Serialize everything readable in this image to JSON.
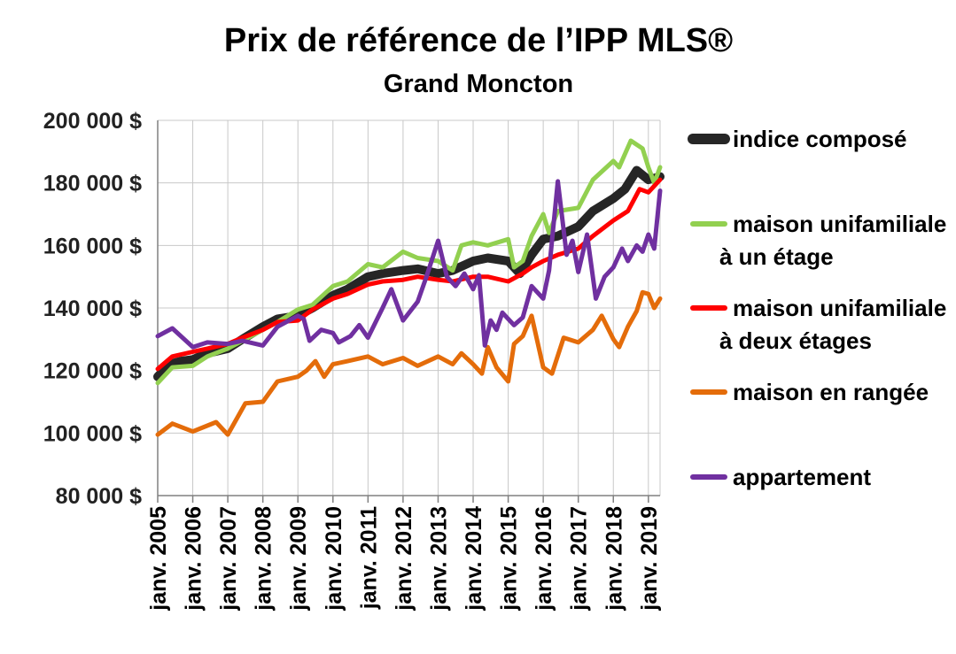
{
  "chart_data": {
    "type": "line",
    "title": "Prix de référence de l’IPP MLS®",
    "subtitle": "Grand Moncton",
    "ylim": [
      80000,
      200000
    ],
    "yticks": [
      80000,
      100000,
      120000,
      140000,
      160000,
      180000,
      200000
    ],
    "ytick_labels": [
      "80 000 $",
      "100 000 $",
      "120 000 $",
      "140 000 $",
      "160 000 $",
      "180 000 $",
      "200 000 $"
    ],
    "xlim": [
      "2005-01",
      "2019-05"
    ],
    "xticks": [
      "2005-01",
      "2006-01",
      "2007-01",
      "2008-01",
      "2009-01",
      "2010-01",
      "2011-01",
      "2012-01",
      "2013-01",
      "2014-01",
      "2015-01",
      "2016-01",
      "2017-01",
      "2018-01",
      "2019-01"
    ],
    "xtick_labels": [
      "janv. 2005",
      "janv. 2006",
      "janv. 2007",
      "janv. 2008",
      "janv. 2009",
      "janv. 2010",
      "janv. 2011",
      "janv. 2012",
      "janv. 2013",
      "janv. 2014",
      "janv. 2015",
      "janv. 2016",
      "janv. 2017",
      "janv. 2018",
      "janv. 2019"
    ],
    "grid": true,
    "legend_position": "right",
    "series": [
      {
        "name": "indice composé",
        "color": "#262626",
        "width": 10,
        "points": [
          [
            "2005-01",
            118000
          ],
          [
            "2005-05",
            122000
          ],
          [
            "2005-09",
            123000
          ],
          [
            "2006-01",
            123500
          ],
          [
            "2006-06",
            125500
          ],
          [
            "2007-01",
            127000
          ],
          [
            "2007-06",
            130000
          ],
          [
            "2008-01",
            134000
          ],
          [
            "2008-06",
            136500
          ],
          [
            "2009-01",
            137500
          ],
          [
            "2009-06",
            140000
          ],
          [
            "2010-01",
            144000
          ],
          [
            "2010-06",
            146000
          ],
          [
            "2011-01",
            150000
          ],
          [
            "2011-06",
            151000
          ],
          [
            "2012-01",
            152000
          ],
          [
            "2012-06",
            152500
          ],
          [
            "2013-01",
            151000
          ],
          [
            "2013-06",
            152000
          ],
          [
            "2014-01",
            155000
          ],
          [
            "2014-06",
            156000
          ],
          [
            "2015-01",
            155000
          ],
          [
            "2015-05",
            151000
          ],
          [
            "2015-09",
            157000
          ],
          [
            "2016-01",
            162000
          ],
          [
            "2016-06",
            163000
          ],
          [
            "2017-01",
            166000
          ],
          [
            "2017-06",
            171000
          ],
          [
            "2018-01",
            175000
          ],
          [
            "2018-05",
            178000
          ],
          [
            "2018-09",
            184000
          ],
          [
            "2019-01",
            181000
          ],
          [
            "2019-05",
            182000
          ]
        ]
      },
      {
        "name": "maison unifamiliale à un étage",
        "color": "#92d050",
        "width": 5,
        "points": [
          [
            "2005-01",
            116000
          ],
          [
            "2005-03",
            118000
          ],
          [
            "2005-06",
            121000
          ],
          [
            "2006-01",
            121500
          ],
          [
            "2006-06",
            124500
          ],
          [
            "2007-01",
            127000
          ],
          [
            "2007-06",
            129500
          ],
          [
            "2008-01",
            133000
          ],
          [
            "2008-06",
            135500
          ],
          [
            "2009-01",
            139500
          ],
          [
            "2009-06",
            141000
          ],
          [
            "2010-01",
            147000
          ],
          [
            "2010-06",
            148500
          ],
          [
            "2011-01",
            154000
          ],
          [
            "2011-06",
            153000
          ],
          [
            "2012-01",
            158000
          ],
          [
            "2012-06",
            156000
          ],
          [
            "2013-01",
            155000
          ],
          [
            "2013-06",
            152000
          ],
          [
            "2013-09",
            160000
          ],
          [
            "2014-01",
            161000
          ],
          [
            "2014-06",
            160000
          ],
          [
            "2015-01",
            162000
          ],
          [
            "2015-03",
            153000
          ],
          [
            "2015-06",
            155000
          ],
          [
            "2015-09",
            163000
          ],
          [
            "2016-01",
            170000
          ],
          [
            "2016-03",
            164000
          ],
          [
            "2016-06",
            171000
          ],
          [
            "2017-01",
            172000
          ],
          [
            "2017-06",
            181000
          ],
          [
            "2018-01",
            187000
          ],
          [
            "2018-03",
            185000
          ],
          [
            "2018-07",
            193500
          ],
          [
            "2018-11",
            191000
          ],
          [
            "2019-01",
            185000
          ],
          [
            "2019-03",
            180000
          ],
          [
            "2019-05",
            185000
          ]
        ]
      },
      {
        "name": "maison unifamiliale à deux étages",
        "color": "#ff0000",
        "width": 5,
        "points": [
          [
            "2005-01",
            120500
          ],
          [
            "2005-06",
            124500
          ],
          [
            "2006-01",
            126000
          ],
          [
            "2006-06",
            127000
          ],
          [
            "2007-01",
            128500
          ],
          [
            "2007-06",
            130500
          ],
          [
            "2008-01",
            133000
          ],
          [
            "2008-06",
            135500
          ],
          [
            "2009-01",
            136000
          ],
          [
            "2009-06",
            139500
          ],
          [
            "2010-01",
            143000
          ],
          [
            "2010-06",
            144500
          ],
          [
            "2011-01",
            147500
          ],
          [
            "2011-06",
            148500
          ],
          [
            "2012-01",
            149000
          ],
          [
            "2012-06",
            150000
          ],
          [
            "2013-01",
            149000
          ],
          [
            "2013-06",
            148500
          ],
          [
            "2014-01",
            150000
          ],
          [
            "2014-06",
            150000
          ],
          [
            "2015-01",
            148500
          ],
          [
            "2015-06",
            151000
          ],
          [
            "2015-09",
            153000
          ],
          [
            "2016-01",
            155000
          ],
          [
            "2016-06",
            157000
          ],
          [
            "2017-01",
            159000
          ],
          [
            "2017-06",
            163000
          ],
          [
            "2018-01",
            168000
          ],
          [
            "2018-06",
            171000
          ],
          [
            "2018-10",
            178000
          ],
          [
            "2019-01",
            177000
          ],
          [
            "2019-05",
            181000
          ]
        ]
      },
      {
        "name": "maison en rangée",
        "color": "#e46c0a",
        "width": 5,
        "points": [
          [
            "2005-01",
            99500
          ],
          [
            "2005-06",
            103000
          ],
          [
            "2006-01",
            100500
          ],
          [
            "2006-09",
            103500
          ],
          [
            "2007-01",
            99500
          ],
          [
            "2007-07",
            109500
          ],
          [
            "2008-01",
            110000
          ],
          [
            "2008-06",
            116500
          ],
          [
            "2009-01",
            118000
          ],
          [
            "2009-04",
            120000
          ],
          [
            "2009-07",
            123000
          ],
          [
            "2009-10",
            118000
          ],
          [
            "2010-01",
            122000
          ],
          [
            "2010-06",
            123000
          ],
          [
            "2011-01",
            124500
          ],
          [
            "2011-06",
            122000
          ],
          [
            "2012-01",
            124000
          ],
          [
            "2012-06",
            121500
          ],
          [
            "2013-01",
            124500
          ],
          [
            "2013-06",
            122000
          ],
          [
            "2013-09",
            125500
          ],
          [
            "2014-01",
            122000
          ],
          [
            "2014-04",
            119000
          ],
          [
            "2014-06",
            127500
          ],
          [
            "2014-09",
            121000
          ],
          [
            "2015-01",
            116500
          ],
          [
            "2015-03",
            128500
          ],
          [
            "2015-06",
            131000
          ],
          [
            "2015-09",
            137500
          ],
          [
            "2016-01",
            121000
          ],
          [
            "2016-04",
            119000
          ],
          [
            "2016-08",
            130500
          ],
          [
            "2017-01",
            129000
          ],
          [
            "2017-06",
            133000
          ],
          [
            "2017-09",
            137500
          ],
          [
            "2018-01",
            130000
          ],
          [
            "2018-03",
            127500
          ],
          [
            "2018-06",
            134000
          ],
          [
            "2018-09",
            139000
          ],
          [
            "2018-11",
            145000
          ],
          [
            "2019-01",
            144500
          ],
          [
            "2019-03",
            140000
          ],
          [
            "2019-05",
            143000
          ]
        ]
      },
      {
        "name": "appartement",
        "color": "#7030a0",
        "width": 5,
        "points": [
          [
            "2005-01",
            131000
          ],
          [
            "2005-06",
            133500
          ],
          [
            "2006-01",
            127500
          ],
          [
            "2006-06",
            129000
          ],
          [
            "2007-01",
            128500
          ],
          [
            "2007-06",
            129500
          ],
          [
            "2008-01",
            128000
          ],
          [
            "2008-06",
            134000
          ],
          [
            "2009-01",
            137500
          ],
          [
            "2009-03",
            136500
          ],
          [
            "2009-05",
            129500
          ],
          [
            "2009-09",
            133000
          ],
          [
            "2010-01",
            132000
          ],
          [
            "2010-03",
            129000
          ],
          [
            "2010-07",
            131000
          ],
          [
            "2010-10",
            134500
          ],
          [
            "2011-01",
            130500
          ],
          [
            "2011-06",
            140000
          ],
          [
            "2011-09",
            146000
          ],
          [
            "2012-01",
            136000
          ],
          [
            "2012-06",
            142000
          ],
          [
            "2012-09",
            150000
          ],
          [
            "2013-01",
            161500
          ],
          [
            "2013-04",
            150000
          ],
          [
            "2013-07",
            147000
          ],
          [
            "2013-10",
            151000
          ],
          [
            "2014-01",
            146000
          ],
          [
            "2014-03",
            150500
          ],
          [
            "2014-05",
            128000
          ],
          [
            "2014-07",
            136000
          ],
          [
            "2014-09",
            133000
          ],
          [
            "2014-11",
            138500
          ],
          [
            "2015-03",
            134500
          ],
          [
            "2015-06",
            137000
          ],
          [
            "2015-09",
            147000
          ],
          [
            "2016-01",
            143000
          ],
          [
            "2016-03",
            152000
          ],
          [
            "2016-06",
            180500
          ],
          [
            "2016-09",
            157000
          ],
          [
            "2016-11",
            161500
          ],
          [
            "2017-01",
            151500
          ],
          [
            "2017-04",
            163500
          ],
          [
            "2017-07",
            143000
          ],
          [
            "2017-10",
            150000
          ],
          [
            "2018-01",
            153000
          ],
          [
            "2018-04",
            159000
          ],
          [
            "2018-06",
            155000
          ],
          [
            "2018-09",
            160000
          ],
          [
            "2018-11",
            158000
          ],
          [
            "2019-01",
            163500
          ],
          [
            "2019-03",
            159000
          ],
          [
            "2019-05",
            177500
          ]
        ]
      }
    ]
  }
}
